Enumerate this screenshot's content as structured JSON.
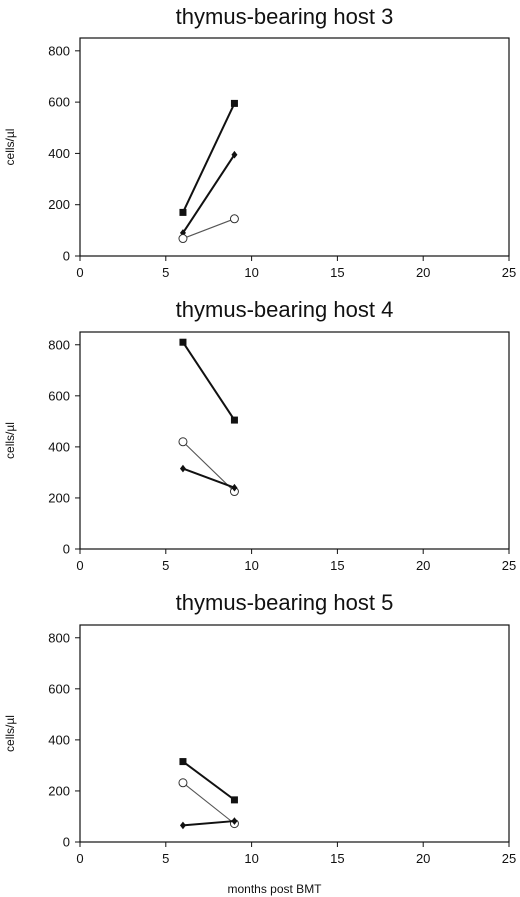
{
  "xlabel_bottom": "months post BMT",
  "chart_data": [
    {
      "type": "line",
      "title": "thymus-bearing host 3",
      "ylabel": "cells/µl",
      "xlabel": "",
      "xlim": [
        0,
        25
      ],
      "ylim": [
        0,
        850
      ],
      "xticks": [
        0,
        5,
        10,
        15,
        20,
        25
      ],
      "yticks": [
        0,
        200,
        400,
        600,
        800
      ],
      "series": [
        {
          "marker": "square",
          "color": "#111111",
          "points": [
            [
              6,
              170
            ],
            [
              9,
              595
            ]
          ]
        },
        {
          "marker": "diamond",
          "color": "#111111",
          "points": [
            [
              6,
              90
            ],
            [
              9,
              395
            ]
          ]
        },
        {
          "marker": "open-circle",
          "color": "#555555",
          "points": [
            [
              6,
              68
            ],
            [
              9,
              145
            ]
          ]
        }
      ]
    },
    {
      "type": "line",
      "title": "thymus-bearing host 4",
      "ylabel": "cells/µl",
      "xlabel": "",
      "xlim": [
        0,
        25
      ],
      "ylim": [
        0,
        850
      ],
      "xticks": [
        0,
        5,
        10,
        15,
        20,
        25
      ],
      "yticks": [
        0,
        200,
        400,
        600,
        800
      ],
      "series": [
        {
          "marker": "square",
          "color": "#111111",
          "points": [
            [
              6,
              810
            ],
            [
              9,
              505
            ]
          ]
        },
        {
          "marker": "open-circle",
          "color": "#555555",
          "points": [
            [
              6,
              420
            ],
            [
              9,
              225
            ]
          ]
        },
        {
          "marker": "diamond",
          "color": "#111111",
          "points": [
            [
              6,
              315
            ],
            [
              9,
              240
            ]
          ]
        }
      ]
    },
    {
      "type": "line",
      "title": "thymus-bearing host 5",
      "ylabel": "cells/µl",
      "xlabel": "months post BMT",
      "xlim": [
        0,
        25
      ],
      "ylim": [
        0,
        850
      ],
      "xticks": [
        0,
        5,
        10,
        15,
        20,
        25
      ],
      "yticks": [
        0,
        200,
        400,
        600,
        800
      ],
      "series": [
        {
          "marker": "square",
          "color": "#111111",
          "points": [
            [
              6,
              315
            ],
            [
              9,
              165
            ]
          ]
        },
        {
          "marker": "open-circle",
          "color": "#555555",
          "points": [
            [
              6,
              232
            ],
            [
              9,
              72
            ]
          ]
        },
        {
          "marker": "diamond",
          "color": "#111111",
          "points": [
            [
              6,
              65
            ],
            [
              9,
              82
            ]
          ]
        }
      ]
    }
  ]
}
